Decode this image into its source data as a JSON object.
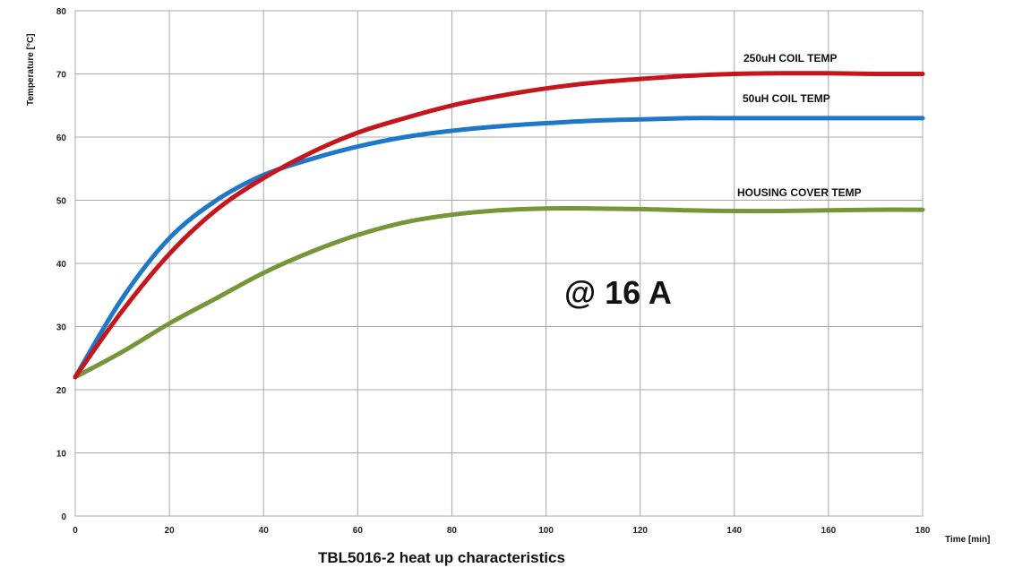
{
  "chart_data": {
    "type": "line",
    "title": "TBL5016-2 heat up characteristics",
    "xlabel": "Time [min]",
    "ylabel": "Temperature [°C]",
    "xlim": [
      0,
      180
    ],
    "ylim": [
      0,
      80
    ],
    "xticks": [
      0,
      20,
      40,
      60,
      80,
      100,
      120,
      140,
      160,
      180
    ],
    "yticks": [
      0,
      10,
      20,
      30,
      40,
      50,
      60,
      70,
      80
    ],
    "grid": true,
    "annotations": [
      "@ 16 A"
    ],
    "series": [
      {
        "name": "250uH COIL TEMP",
        "color": "#c4161c",
        "x": [
          0,
          10,
          20,
          30,
          40,
          50,
          60,
          70,
          80,
          90,
          100,
          110,
          120,
          130,
          140,
          150,
          160,
          170,
          180
        ],
        "y": [
          22,
          32.5,
          41.5,
          48.5,
          53.5,
          57.5,
          60.7,
          63,
          65,
          66.5,
          67.7,
          68.6,
          69.2,
          69.7,
          70,
          70.1,
          70.1,
          70,
          70
        ]
      },
      {
        "name": "50uH COIL TEMP",
        "color": "#1f77c8",
        "x": [
          0,
          10,
          20,
          30,
          40,
          50,
          60,
          70,
          80,
          90,
          100,
          110,
          120,
          130,
          140,
          150,
          160,
          170,
          180
        ],
        "y": [
          22,
          34.5,
          44,
          50,
          54,
          56.5,
          58.5,
          60,
          61,
          61.7,
          62.2,
          62.6,
          62.8,
          63,
          63,
          63,
          63,
          63,
          63
        ]
      },
      {
        "name": "HOUSING COVER TEMP",
        "color": "#77963a",
        "x": [
          0,
          10,
          20,
          30,
          40,
          50,
          60,
          70,
          80,
          90,
          100,
          110,
          120,
          130,
          140,
          150,
          160,
          170,
          180
        ],
        "y": [
          22,
          26,
          30.5,
          34.5,
          38.5,
          41.8,
          44.5,
          46.5,
          47.7,
          48.4,
          48.7,
          48.7,
          48.6,
          48.4,
          48.3,
          48.3,
          48.4,
          48.5,
          48.5
        ]
      }
    ]
  }
}
